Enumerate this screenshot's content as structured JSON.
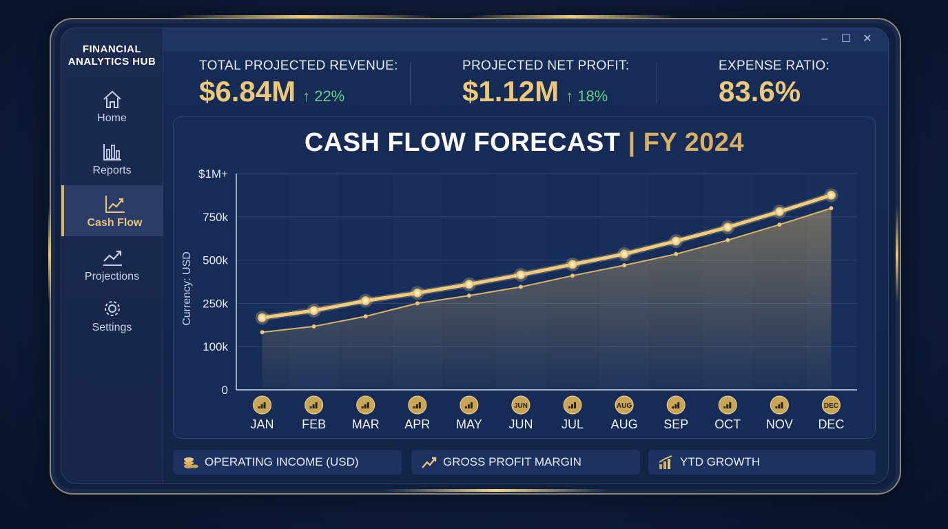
{
  "app": {
    "title": "FINANCIAL ANALYTICS HUB",
    "title_line1": "FINANCIAL",
    "title_line2": "ANALYTICS HUB"
  },
  "window_controls": [
    "–",
    "☐",
    "✕"
  ],
  "sidebar": {
    "items": [
      {
        "label": "Home",
        "icon": "home-icon",
        "active": false
      },
      {
        "label": "Reports",
        "icon": "bar-chart-icon",
        "active": false
      },
      {
        "label": "Cash Flow",
        "icon": "line-chart-icon",
        "active": true
      },
      {
        "label": "Projections",
        "icon": "trend-up-icon",
        "active": false
      },
      {
        "label": "Settings",
        "icon": "gear-icon",
        "active": false
      }
    ]
  },
  "kpis": [
    {
      "title": "TOTAL PROJECTED REVENUE:",
      "value": "$6.84M",
      "delta": "↑ 22%"
    },
    {
      "title": "PROJECTED NET PROFIT:",
      "value": "$1.12M",
      "delta": "↑ 18%"
    },
    {
      "title": "EXPENSE RATIO:",
      "value": "83.6%",
      "delta": ""
    }
  ],
  "colors": {
    "accent_gold": "#ecc97a",
    "positive_green": "#62d08a",
    "panel": "#162b56"
  },
  "chart_data": {
    "type": "line",
    "title": "CASH FLOW FORECAST",
    "title_suffix": "| FY 2024",
    "ylabel": "Currency: USD",
    "yticks": [
      "0",
      "100k",
      "250k",
      "500k",
      "750k",
      "$1M+"
    ],
    "categories": [
      "JAN",
      "FEB",
      "MAR",
      "APR",
      "MAY",
      "JUN",
      "JUL",
      "AUG",
      "SEP",
      "OCT",
      "NOV",
      "DEC"
    ],
    "category_badges": [
      "",
      "",
      "",
      "",
      "",
      "JUN",
      "",
      "AUG",
      "",
      "",
      "",
      "DEC"
    ],
    "series": [
      {
        "values": [
          200,
          225,
          265,
          310,
          360,
          415,
          475,
          535,
          610,
          690,
          780,
          875
        ]
      },
      {
        "values": [
          150,
          170,
          205,
          250,
          295,
          345,
          410,
          470,
          535,
          615,
          705,
          800
        ]
      }
    ],
    "grid": true
  },
  "bottom_cards": [
    {
      "label": "OPERATING INCOME (USD)",
      "icon": "coins-icon"
    },
    {
      "label": "GROSS PROFIT MARGIN",
      "icon": "trend-up-icon"
    },
    {
      "label": "YTD GROWTH",
      "icon": "growth-bars-icon"
    }
  ]
}
